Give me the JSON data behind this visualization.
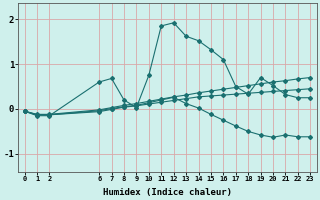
{
  "xlabel": "Humidex (Indice chaleur)",
  "bg_color": "#cff0ec",
  "grid_color": "#d9a8a8",
  "line_color": "#1a7070",
  "xticks": [
    0,
    1,
    2,
    6,
    7,
    8,
    9,
    10,
    11,
    12,
    13,
    14,
    15,
    16,
    17,
    18,
    19,
    20,
    21,
    22,
    23
  ],
  "ylim": [
    -1.4,
    2.35
  ],
  "yticks": [
    -1,
    0,
    1,
    2
  ],
  "line1_x": [
    0,
    1,
    2,
    6,
    7,
    8,
    9,
    10,
    11,
    12,
    13,
    14,
    15,
    16,
    17,
    18,
    19,
    20,
    21,
    22,
    23
  ],
  "line1_y": [
    -0.05,
    -0.15,
    -0.15,
    0.6,
    0.68,
    0.2,
    0.03,
    0.75,
    1.85,
    1.92,
    1.62,
    1.52,
    1.32,
    1.1,
    0.5,
    0.33,
    0.7,
    0.52,
    0.32,
    0.25,
    0.25
  ],
  "line2_x": [
    0,
    1,
    2,
    6,
    7,
    8,
    9,
    10,
    11,
    12,
    13,
    14,
    15,
    16,
    17,
    18,
    19,
    20,
    21,
    22,
    23
  ],
  "line2_y": [
    -0.05,
    -0.12,
    -0.12,
    -0.02,
    0.03,
    0.08,
    0.12,
    0.17,
    0.22,
    0.27,
    0.31,
    0.36,
    0.4,
    0.44,
    0.48,
    0.52,
    0.56,
    0.6,
    0.63,
    0.67,
    0.7
  ],
  "line3_x": [
    0,
    1,
    2,
    6,
    7,
    8,
    9,
    10,
    11,
    12,
    13,
    14,
    15,
    16,
    17,
    18,
    19,
    20,
    21,
    22,
    23
  ],
  "line3_y": [
    -0.05,
    -0.13,
    -0.13,
    -0.06,
    -0.01,
    0.04,
    0.07,
    0.11,
    0.15,
    0.19,
    0.23,
    0.27,
    0.29,
    0.31,
    0.33,
    0.35,
    0.37,
    0.39,
    0.41,
    0.43,
    0.45
  ],
  "line4_x": [
    0,
    1,
    2,
    6,
    7,
    8,
    9,
    10,
    11,
    12,
    13,
    14,
    15,
    16,
    17,
    18,
    19,
    20,
    21,
    22,
    23
  ],
  "line4_y": [
    -0.05,
    -0.13,
    -0.13,
    -0.04,
    0.01,
    0.05,
    0.08,
    0.14,
    0.2,
    0.26,
    0.12,
    0.02,
    -0.12,
    -0.25,
    -0.38,
    -0.5,
    -0.58,
    -0.63,
    -0.58,
    -0.62,
    -0.62
  ]
}
